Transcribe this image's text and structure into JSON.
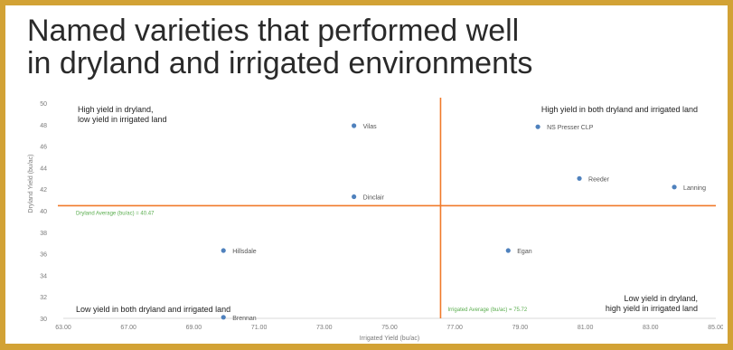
{
  "slide": {
    "title_line1": "Named varieties that performed well",
    "title_line2": "in dryland and irrigated environments"
  },
  "colors": {
    "frame": "#d2a235",
    "quadrant_line": "#f07a2a",
    "point": "#4f81bd",
    "average_label": "#5aad4e"
  },
  "chart_data": {
    "type": "scatter",
    "xlabel": "Irrigated Yield (bu/ac)",
    "ylabel": "Dryland Yield (bu/ac)",
    "xlim": [
      63,
      85
    ],
    "ylim": [
      30,
      50
    ],
    "x_ticks": [
      "63.00",
      "67.00",
      "69.00",
      "71.00",
      "73.00",
      "75.00",
      "77.00",
      "79.00",
      "81.00",
      "83.00",
      "85.00"
    ],
    "y_ticks": [
      "30",
      "32",
      "34",
      "36",
      "38",
      "40",
      "42",
      "44",
      "46",
      "48",
      "50"
    ],
    "points": [
      {
        "name": "Vilas",
        "x": 72.8,
        "y": 47.9
      },
      {
        "name": "NS Presser CLP",
        "x": 79.0,
        "y": 47.8
      },
      {
        "name": "Reeder",
        "x": 80.4,
        "y": 43.0
      },
      {
        "name": "Lanning",
        "x": 83.6,
        "y": 42.2
      },
      {
        "name": "Dinclair",
        "x": 72.8,
        "y": 41.3
      },
      {
        "name": "Hillsdale",
        "x": 68.4,
        "y": 36.3
      },
      {
        "name": "Egan",
        "x": 78.0,
        "y": 36.3
      },
      {
        "name": "Brennan",
        "x": 68.4,
        "y": 30.1
      }
    ],
    "dryland_average": {
      "label": "Dryland Average (bu/ac) = 40.47",
      "y": 40.47
    },
    "irrigated_average": {
      "label": "Irrigated Average (bu/ac) = 75.72",
      "x": 75.72
    },
    "quadrant_labels": {
      "top_left_1": "High yield in dryland,",
      "top_left_2": "low yield in irrigated land",
      "top_right": "High yield in both dryland and irrigated land",
      "bottom_left": "Low yield in both dryland and irrigated land",
      "bottom_right_1": "Low yield in dryland,",
      "bottom_right_2": "high yield in irrigated land"
    }
  }
}
